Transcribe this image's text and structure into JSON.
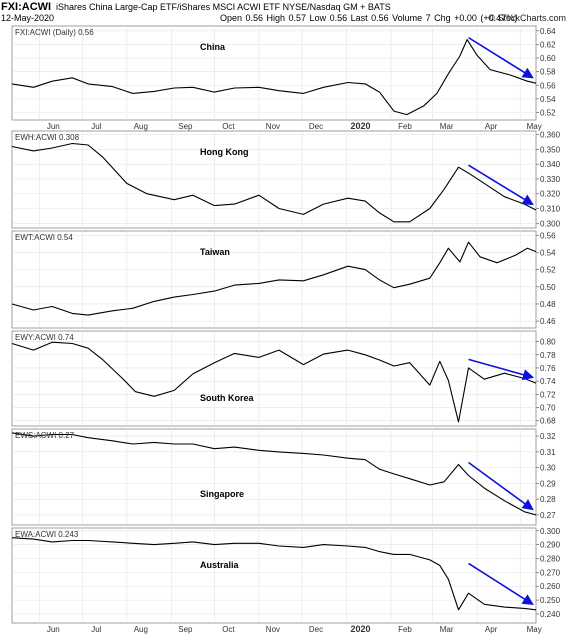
{
  "header": {
    "symbol": "FXI:ACWI",
    "description": "iShares China Large-Cap ETF/iShares MSCI ACWI ETF  NYSE/Nasdaq GM + BATS",
    "date": "12-May-2020",
    "quote": "Open 0.56  High 0.57  Low 0.56  Last 0.56  Volume 7  Chg +0.00 (+0.47%)",
    "credit": "© StockCharts.com"
  },
  "chart_data": {
    "type": "line",
    "x_axis": {
      "months": [
        "Jun",
        "Jul",
        "Aug",
        "Sep",
        "Oct",
        "Nov",
        "Dec",
        "2020",
        "Feb",
        "Mar",
        "Apr",
        "May"
      ],
      "start": "2019-05-13",
      "end": "2020-05-12"
    },
    "panels": [
      {
        "key": "china",
        "legend": "FXI:ACWI (Daily) 0.56",
        "label": "China",
        "ticks": [
          0.52,
          0.54,
          0.56,
          0.58,
          0.6,
          0.62,
          0.64
        ],
        "tick_labels": [
          "0.52",
          "0.54",
          "0.56",
          "0.58",
          "0.60",
          "0.62",
          "0.64"
        ],
        "ylim": [
          0.509,
          0.647
        ],
        "trend_arrow": true,
        "points": [
          [
            "2019-05-13",
            0.562
          ],
          [
            "2019-05-28",
            0.557
          ],
          [
            "2019-06-10",
            0.566
          ],
          [
            "2019-06-24",
            0.571
          ],
          [
            "2019-07-05",
            0.562
          ],
          [
            "2019-07-22",
            0.558
          ],
          [
            "2019-08-05",
            0.548
          ],
          [
            "2019-08-20",
            0.551
          ],
          [
            "2019-09-03",
            0.556
          ],
          [
            "2019-09-16",
            0.557
          ],
          [
            "2019-10-01",
            0.55
          ],
          [
            "2019-10-15",
            0.556
          ],
          [
            "2019-11-01",
            0.557
          ],
          [
            "2019-11-15",
            0.552
          ],
          [
            "2019-12-02",
            0.548
          ],
          [
            "2019-12-16",
            0.557
          ],
          [
            "2020-01-02",
            0.564
          ],
          [
            "2020-01-14",
            0.562
          ],
          [
            "2020-01-24",
            0.55
          ],
          [
            "2020-02-03",
            0.522
          ],
          [
            "2020-02-12",
            0.517
          ],
          [
            "2020-02-24",
            0.53
          ],
          [
            "2020-03-04",
            0.548
          ],
          [
            "2020-03-12",
            0.577
          ],
          [
            "2020-03-20",
            0.603
          ],
          [
            "2020-03-25",
            0.627
          ],
          [
            "2020-04-01",
            0.604
          ],
          [
            "2020-04-10",
            0.583
          ],
          [
            "2020-04-24",
            0.575
          ],
          [
            "2020-05-06",
            0.566
          ],
          [
            "2020-05-12",
            0.563
          ]
        ]
      },
      {
        "key": "hongkong",
        "legend": "EWH:ACWI 0.308",
        "label": "Hong Kong",
        "ticks": [
          0.3,
          0.31,
          0.32,
          0.33,
          0.34,
          0.35,
          0.36
        ],
        "tick_labels": [
          "0.300",
          "0.310",
          "0.320",
          "0.330",
          "0.340",
          "0.350",
          "0.360"
        ],
        "ylim": [
          0.2968,
          0.3625
        ],
        "trend_arrow": true,
        "points": [
          [
            "2019-05-13",
            0.352
          ],
          [
            "2019-05-28",
            0.349
          ],
          [
            "2019-06-10",
            0.351
          ],
          [
            "2019-06-24",
            0.354
          ],
          [
            "2019-07-05",
            0.353
          ],
          [
            "2019-07-15",
            0.345
          ],
          [
            "2019-08-01",
            0.327
          ],
          [
            "2019-08-15",
            0.32
          ],
          [
            "2019-09-03",
            0.316
          ],
          [
            "2019-09-16",
            0.319
          ],
          [
            "2019-10-01",
            0.312
          ],
          [
            "2019-10-15",
            0.313
          ],
          [
            "2019-11-01",
            0.319
          ],
          [
            "2019-11-15",
            0.31
          ],
          [
            "2019-12-02",
            0.306
          ],
          [
            "2019-12-16",
            0.313
          ],
          [
            "2020-01-02",
            0.317
          ],
          [
            "2020-01-14",
            0.315
          ],
          [
            "2020-01-24",
            0.307
          ],
          [
            "2020-02-03",
            0.301
          ],
          [
            "2020-02-14",
            0.301
          ],
          [
            "2020-02-28",
            0.31
          ],
          [
            "2020-03-09",
            0.323
          ],
          [
            "2020-03-19",
            0.338
          ],
          [
            "2020-03-26",
            0.334
          ],
          [
            "2020-04-06",
            0.327
          ],
          [
            "2020-04-20",
            0.318
          ],
          [
            "2020-05-04",
            0.313
          ],
          [
            "2020-05-12",
            0.309
          ]
        ]
      },
      {
        "key": "taiwan",
        "legend": "EWT:ACWI 0.54",
        "label": "Taiwan",
        "ticks": [
          0.46,
          0.48,
          0.5,
          0.52,
          0.54,
          0.56
        ],
        "tick_labels": [
          "0.46",
          "0.48",
          "0.50",
          "0.52",
          "0.54",
          "0.56"
        ],
        "ylim": [
          0.452,
          0.565
        ],
        "trend_arrow": false,
        "points": [
          [
            "2019-05-13",
            0.48
          ],
          [
            "2019-05-28",
            0.473
          ],
          [
            "2019-06-10",
            0.477
          ],
          [
            "2019-06-24",
            0.469
          ],
          [
            "2019-07-05",
            0.467
          ],
          [
            "2019-07-22",
            0.472
          ],
          [
            "2019-08-05",
            0.475
          ],
          [
            "2019-08-20",
            0.483
          ],
          [
            "2019-09-03",
            0.488
          ],
          [
            "2019-09-16",
            0.491
          ],
          [
            "2019-10-01",
            0.495
          ],
          [
            "2019-10-15",
            0.502
          ],
          [
            "2019-11-01",
            0.504
          ],
          [
            "2019-11-15",
            0.508
          ],
          [
            "2019-12-02",
            0.507
          ],
          [
            "2019-12-16",
            0.514
          ],
          [
            "2020-01-02",
            0.524
          ],
          [
            "2020-01-14",
            0.52
          ],
          [
            "2020-01-24",
            0.508
          ],
          [
            "2020-02-03",
            0.499
          ],
          [
            "2020-02-14",
            0.503
          ],
          [
            "2020-02-28",
            0.51
          ],
          [
            "2020-03-06",
            0.528
          ],
          [
            "2020-03-12",
            0.545
          ],
          [
            "2020-03-20",
            0.529
          ],
          [
            "2020-03-26",
            0.552
          ],
          [
            "2020-04-03",
            0.535
          ],
          [
            "2020-04-15",
            0.528
          ],
          [
            "2020-04-28",
            0.537
          ],
          [
            "2020-05-06",
            0.545
          ],
          [
            "2020-05-12",
            0.541
          ]
        ]
      },
      {
        "key": "southkorea",
        "legend": "EWY:ACWI 0.74",
        "label": "South Korea",
        "ticks": [
          0.68,
          0.7,
          0.72,
          0.74,
          0.76,
          0.78,
          0.8
        ],
        "tick_labels": [
          "0.68",
          "0.70",
          "0.72",
          "0.74",
          "0.76",
          "0.78",
          "0.80"
        ],
        "ylim": [
          0.672,
          0.816
        ],
        "trend_arrow": true,
        "points": [
          [
            "2019-05-13",
            0.797
          ],
          [
            "2019-05-28",
            0.787
          ],
          [
            "2019-06-10",
            0.799
          ],
          [
            "2019-06-24",
            0.797
          ],
          [
            "2019-07-05",
            0.79
          ],
          [
            "2019-07-15",
            0.773
          ],
          [
            "2019-07-29",
            0.744
          ],
          [
            "2019-08-07",
            0.724
          ],
          [
            "2019-08-20",
            0.717
          ],
          [
            "2019-09-03",
            0.726
          ],
          [
            "2019-09-16",
            0.751
          ],
          [
            "2019-10-01",
            0.768
          ],
          [
            "2019-10-15",
            0.782
          ],
          [
            "2019-11-01",
            0.776
          ],
          [
            "2019-11-15",
            0.787
          ],
          [
            "2019-12-02",
            0.765
          ],
          [
            "2019-12-16",
            0.781
          ],
          [
            "2020-01-02",
            0.787
          ],
          [
            "2020-01-14",
            0.78
          ],
          [
            "2020-01-24",
            0.772
          ],
          [
            "2020-02-03",
            0.763
          ],
          [
            "2020-02-14",
            0.768
          ],
          [
            "2020-02-28",
            0.734
          ],
          [
            "2020-03-06",
            0.77
          ],
          [
            "2020-03-12",
            0.741
          ],
          [
            "2020-03-19",
            0.678
          ],
          [
            "2020-03-26",
            0.76
          ],
          [
            "2020-04-06",
            0.743
          ],
          [
            "2020-04-20",
            0.752
          ],
          [
            "2020-05-04",
            0.744
          ],
          [
            "2020-05-12",
            0.737
          ]
        ]
      },
      {
        "key": "singapore",
        "legend": "EWS:ACWI 0.27",
        "label": "Singapore",
        "ticks": [
          0.27,
          0.28,
          0.29,
          0.3,
          0.31,
          0.32
        ],
        "tick_labels": [
          "0.27",
          "0.28",
          "0.29",
          "0.30",
          "0.31",
          "0.32"
        ],
        "ylim": [
          0.2636,
          0.3245
        ],
        "trend_arrow": true,
        "points": [
          [
            "2019-05-13",
            0.322
          ],
          [
            "2019-05-28",
            0.32
          ],
          [
            "2019-06-10",
            0.321
          ],
          [
            "2019-06-24",
            0.321
          ],
          [
            "2019-07-05",
            0.319
          ],
          [
            "2019-07-22",
            0.317
          ],
          [
            "2019-08-05",
            0.315
          ],
          [
            "2019-08-20",
            0.316
          ],
          [
            "2019-09-03",
            0.315
          ],
          [
            "2019-09-16",
            0.315
          ],
          [
            "2019-10-01",
            0.312
          ],
          [
            "2019-10-15",
            0.313
          ],
          [
            "2019-11-01",
            0.311
          ],
          [
            "2019-11-15",
            0.31
          ],
          [
            "2019-12-02",
            0.309
          ],
          [
            "2019-12-16",
            0.308
          ],
          [
            "2020-01-02",
            0.306
          ],
          [
            "2020-01-14",
            0.305
          ],
          [
            "2020-01-24",
            0.299
          ],
          [
            "2020-02-03",
            0.296
          ],
          [
            "2020-02-14",
            0.293
          ],
          [
            "2020-02-28",
            0.289
          ],
          [
            "2020-03-09",
            0.291
          ],
          [
            "2020-03-19",
            0.302
          ],
          [
            "2020-03-26",
            0.295
          ],
          [
            "2020-04-06",
            0.287
          ],
          [
            "2020-04-20",
            0.279
          ],
          [
            "2020-05-04",
            0.272
          ],
          [
            "2020-05-12",
            0.27
          ]
        ]
      },
      {
        "key": "australia",
        "legend": "EWA:ACWI 0.243",
        "label": "Australia",
        "ticks": [
          0.24,
          0.25,
          0.26,
          0.27,
          0.28,
          0.29,
          0.3
        ],
        "tick_labels": [
          "0.240",
          "0.250",
          "0.260",
          "0.270",
          "0.280",
          "0.290",
          "0.300"
        ],
        "ylim": [
          0.2335,
          0.302
        ],
        "trend_arrow": true,
        "points": [
          [
            "2019-05-13",
            0.295
          ],
          [
            "2019-05-28",
            0.294
          ],
          [
            "2019-06-10",
            0.292
          ],
          [
            "2019-06-24",
            0.293
          ],
          [
            "2019-07-05",
            0.293
          ],
          [
            "2019-07-22",
            0.292
          ],
          [
            "2019-08-05",
            0.291
          ],
          [
            "2019-08-20",
            0.29
          ],
          [
            "2019-09-03",
            0.291
          ],
          [
            "2019-09-16",
            0.292
          ],
          [
            "2019-10-01",
            0.29
          ],
          [
            "2019-10-15",
            0.291
          ],
          [
            "2019-11-01",
            0.291
          ],
          [
            "2019-11-15",
            0.289
          ],
          [
            "2019-12-02",
            0.288
          ],
          [
            "2019-12-16",
            0.29
          ],
          [
            "2020-01-02",
            0.289
          ],
          [
            "2020-01-14",
            0.288
          ],
          [
            "2020-01-24",
            0.285
          ],
          [
            "2020-02-03",
            0.283
          ],
          [
            "2020-02-14",
            0.283
          ],
          [
            "2020-02-28",
            0.279
          ],
          [
            "2020-03-06",
            0.275
          ],
          [
            "2020-03-12",
            0.265
          ],
          [
            "2020-03-19",
            0.243
          ],
          [
            "2020-03-26",
            0.255
          ],
          [
            "2020-04-06",
            0.247
          ],
          [
            "2020-04-20",
            0.245
          ],
          [
            "2020-05-04",
            0.244
          ],
          [
            "2020-05-12",
            0.243
          ]
        ]
      }
    ]
  }
}
